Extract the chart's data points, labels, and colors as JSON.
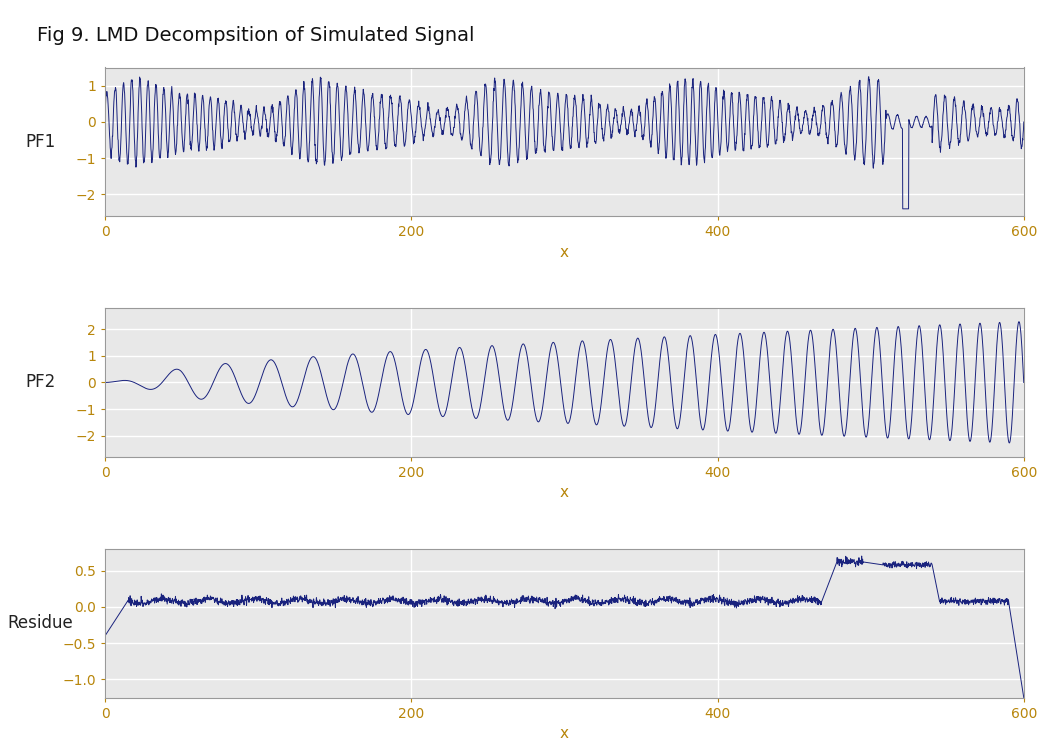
{
  "title": "Fig 9. LMD Decompsition of Simulated Signal",
  "title_fontsize": 14,
  "line_color": "#1a237e",
  "line_width": 0.7,
  "background_color": "#ffffff",
  "panel_bg": "#e8e8e8",
  "grid_color": "#ffffff",
  "tick_label_color": "#b8860b",
  "ylabel_color": "#222222",
  "n_points": 3000,
  "subplots": [
    "PF1",
    "PF2",
    "Residue"
  ],
  "xlim": [
    0,
    600
  ],
  "ylim_pf1": [
    -2.6,
    1.5
  ],
  "ylim_pf2": [
    -2.8,
    2.8
  ],
  "ylim_res": [
    -1.25,
    0.8
  ],
  "yticks_pf1": [
    -2,
    -1,
    0,
    1
  ],
  "yticks_pf2": [
    -2,
    -1,
    0,
    1,
    2
  ],
  "yticks_res": [
    -1.0,
    -0.5,
    0.0,
    0.5
  ],
  "xticks": [
    0,
    200,
    400,
    600
  ],
  "xlabel": "x"
}
